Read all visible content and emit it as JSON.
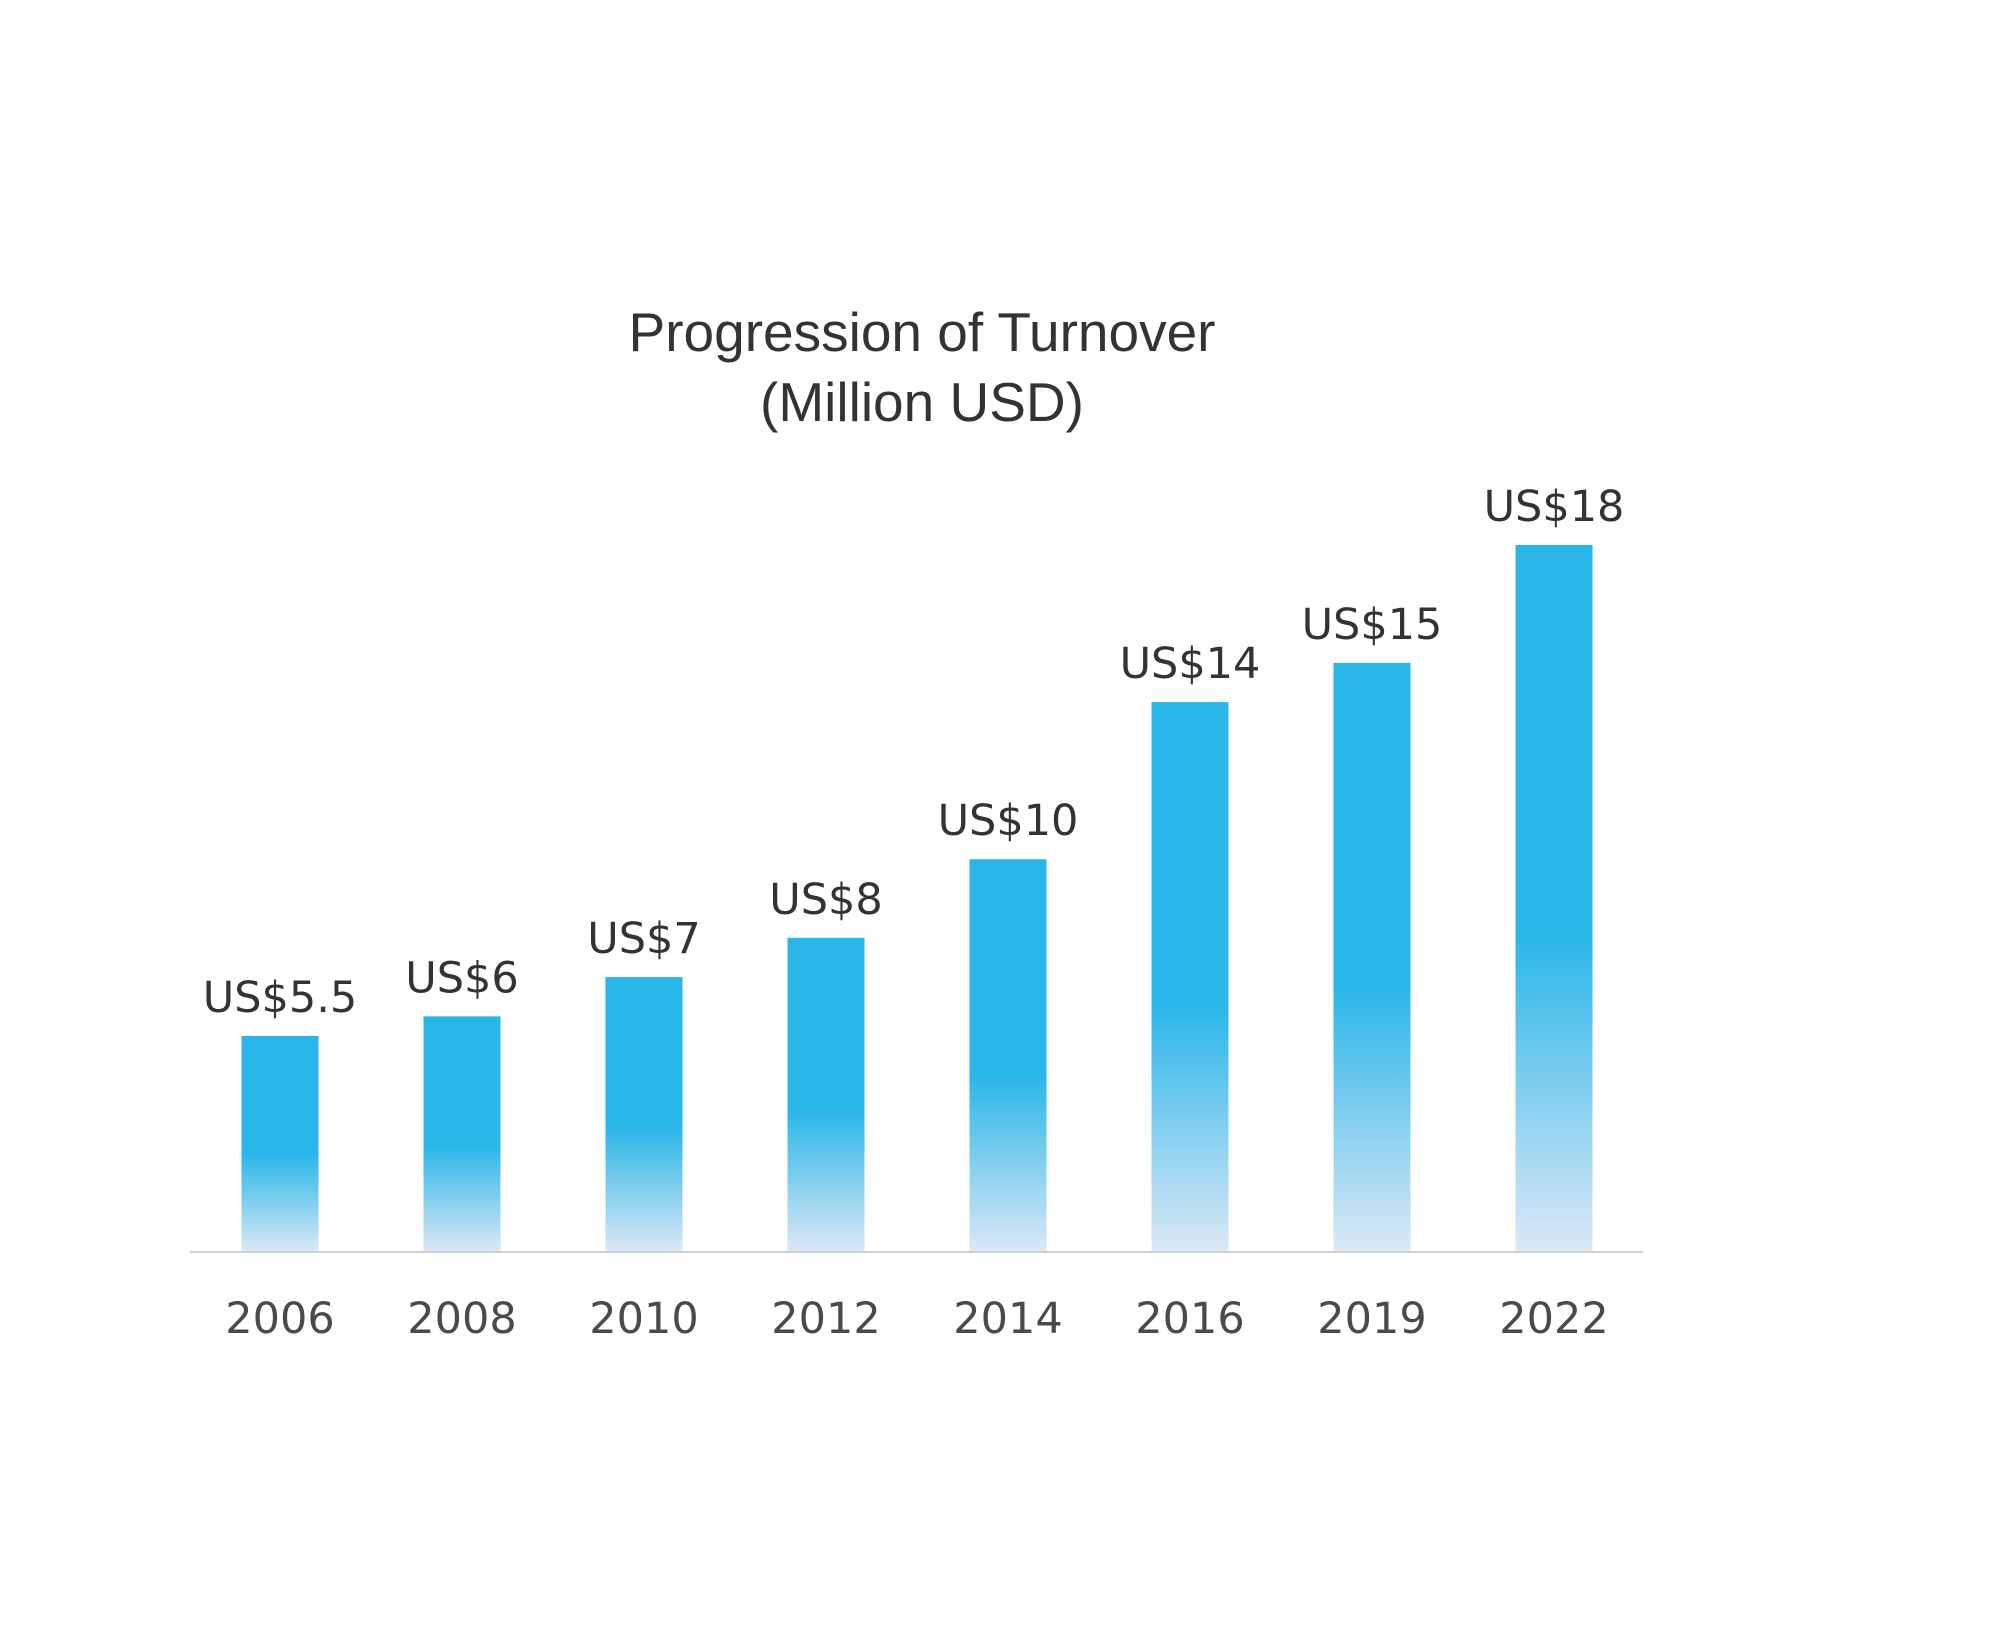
{
  "chart_data": {
    "type": "bar",
    "title": "Progression of Turnover",
    "subtitle": "(Million USD)",
    "categories": [
      "2006",
      "2008",
      "2010",
      "2012",
      "2014",
      "2016",
      "2019",
      "2022"
    ],
    "values": [
      5.5,
      6,
      7,
      8,
      10,
      14,
      15,
      18
    ],
    "data_labels": [
      "US$5.5",
      "US$6",
      "US$7",
      "US$8",
      "US$10",
      "US$14",
      "US$15",
      "US$18"
    ],
    "xlabel": "",
    "ylabel": "",
    "ylim": [
      0,
      18
    ],
    "grid": false,
    "legend": "none",
    "colors": {
      "bar_top": "#29b6e8",
      "bar_bottom": "#dce8f6",
      "axis": "#d0d0d0",
      "text": "#333333"
    }
  }
}
